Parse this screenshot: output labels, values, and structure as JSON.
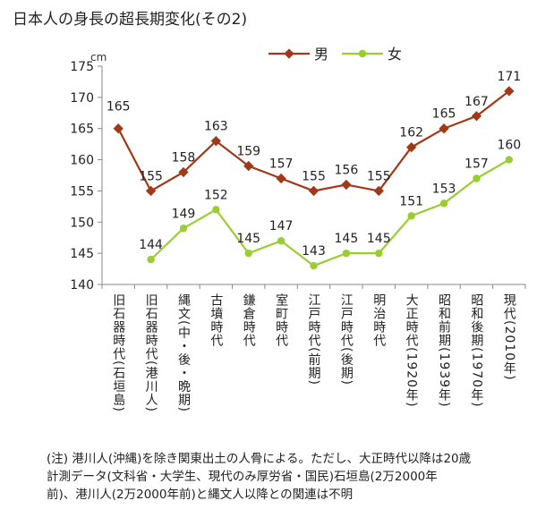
{
  "chart_data": {
    "type": "line",
    "title": "日本人の身長の超長期変化(その2)",
    "ylabel": "cm",
    "xlabel": "",
    "ylim": [
      140,
      175
    ],
    "yticks": [
      140,
      145,
      150,
      155,
      160,
      165,
      170,
      175
    ],
    "grid": false,
    "legend": "top",
    "categories": [
      "旧石器時代(石垣島)",
      "旧石器時代(港川人)",
      "縄文(中・後・晩期)",
      "古墳時代",
      "鎌倉時代",
      "室町時代",
      "江戸時代(前期)",
      "江戸時代(後期)",
      "明治時代",
      "大正時代(1920年)",
      "昭和前期(1939年)",
      "昭和後期(1970年)",
      "現代(2010年)"
    ],
    "series": [
      {
        "name": "男",
        "color": "#a0391a",
        "values": [
          165,
          155,
          158,
          163,
          159,
          157,
          155,
          156,
          155,
          162,
          165,
          167,
          171
        ]
      },
      {
        "name": "女",
        "color": "#9acd32",
        "values": [
          null,
          144,
          149,
          152,
          145,
          147,
          143,
          145,
          145,
          151,
          153,
          157,
          160
        ]
      }
    ],
    "label_offsets_units": {
      "男": [
        -1.5,
        -1.2,
        -1.2,
        -1.2,
        -1.2,
        -1.2,
        -1.2,
        -1.2,
        -1.2,
        -1.2,
        -1.2,
        -1.2,
        -1.2
      ],
      "女": [
        0,
        0,
        -1.2,
        -1.2,
        -1.2,
        -1.2,
        -1.2,
        -1.2,
        -1.2,
        -1.2,
        -1.2,
        -1.2,
        -1.2
      ]
    }
  },
  "note": {
    "lines": [
      "(注) 港川人(沖縄)を除き関東出土の人骨による。ただし、大正時代以降は20歳",
      "計測データ(文科省・大学生、現代のみ厚労省・国民)石垣島(2万2000年",
      "前)、港川人(2万2000年前)と縄文人以降との関連は不明"
    ]
  }
}
